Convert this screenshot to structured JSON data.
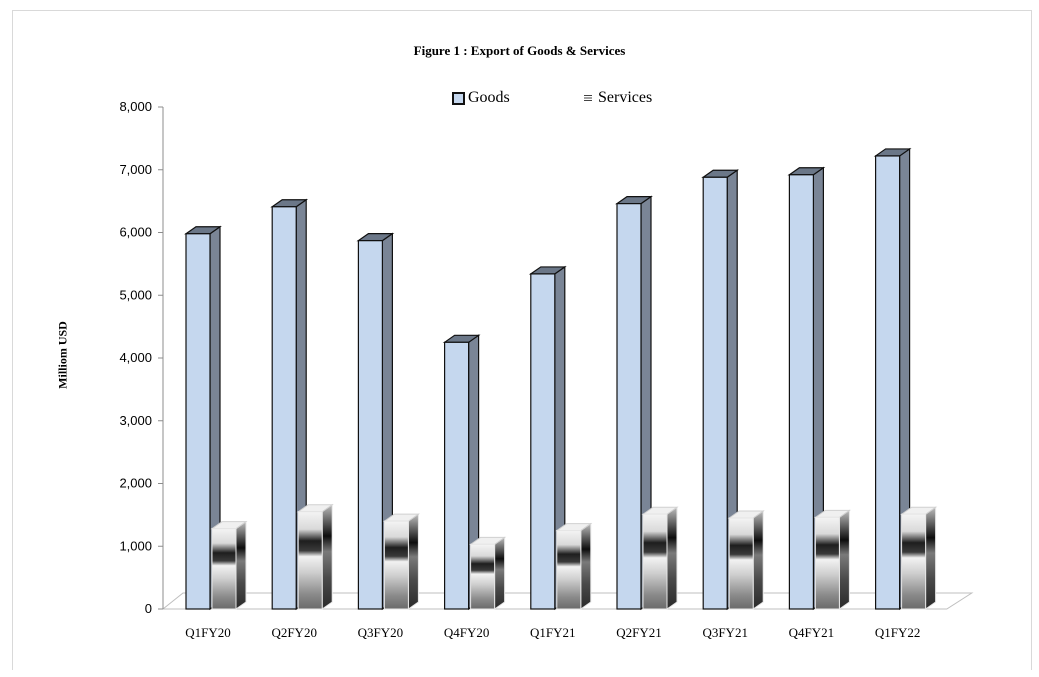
{
  "chart_data": {
    "type": "bar",
    "title": "Figure 1 : Export of Goods & Services",
    "ylabel": "Milliom USD",
    "xlabel": "",
    "ylim": [
      0,
      8000
    ],
    "yticks": [
      "0",
      "1,000",
      "2,000",
      "3,000",
      "4,000",
      "5,000",
      "6,000",
      "7,000",
      "8,000"
    ],
    "categories": [
      "Q1FY20",
      "Q2FY20",
      "Q3FY20",
      "Q4FY20",
      "Q1FY21",
      "Q2FY21",
      "Q3FY21",
      "Q4FY21",
      "Q1FY22"
    ],
    "series": [
      {
        "name": "Goods",
        "values": [
          5980,
          6410,
          5870,
          4250,
          5340,
          6460,
          6880,
          6920,
          7220
        ]
      },
      {
        "name": "Services",
        "values": [
          1280,
          1550,
          1400,
          1030,
          1250,
          1510,
          1450,
          1460,
          1510
        ]
      }
    ],
    "legend": "top-center",
    "grid": false,
    "colors": {
      "goods": "#c5d7ee",
      "goods_side": "#7a8596",
      "goods_top": "#6b7788"
    }
  }
}
